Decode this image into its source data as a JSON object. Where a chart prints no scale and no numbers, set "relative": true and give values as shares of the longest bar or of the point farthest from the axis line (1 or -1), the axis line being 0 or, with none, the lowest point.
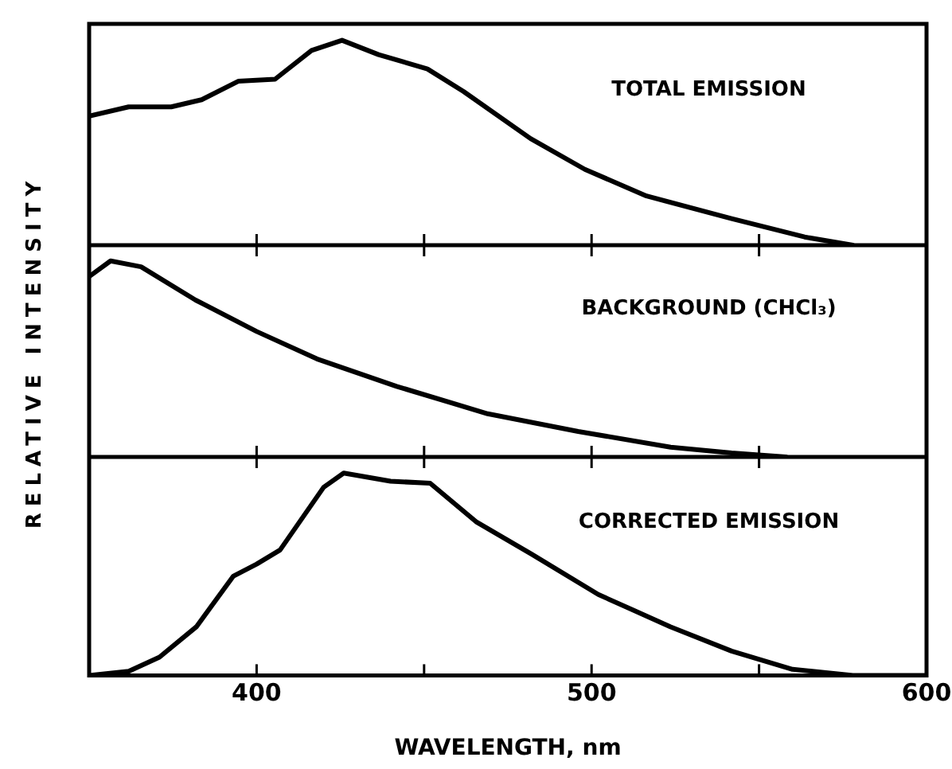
{
  "chart_data": [
    {
      "type": "line",
      "relative": true,
      "marker": "none",
      "line_style": "solid",
      "tick_labels": false,
      "xlim": [
        350,
        600
      ],
      "xticks": [
        {
          "value": 400,
          "label": null
        },
        {
          "value": 450,
          "label": null
        },
        {
          "value": 500,
          "label": null
        },
        {
          "value": 550,
          "label": null
        }
      ],
      "annotations": [
        "TOTAL EMISSION"
      ],
      "series": [
        {
          "color": "#000000",
          "x": [
            350,
            361.8,
            374.5,
            383.6,
            394.5,
            405.5,
            416.4,
            425.5,
            436.4,
            451,
            461.8,
            481.8,
            498,
            516.4,
            541.8,
            563.6,
            578
          ],
          "values": [
            0.63,
            0.675,
            0.675,
            0.71,
            0.8,
            0.81,
            0.95,
            1,
            0.93,
            0.86,
            0.75,
            0.52,
            0.37,
            0.24,
            0.13,
            0.04,
            0
          ]
        }
      ]
    },
    {
      "type": "line",
      "relative": true,
      "marker": "none",
      "line_style": "solid",
      "tick_labels": false,
      "xlim": [
        350,
        600
      ],
      "xticks": [
        {
          "value": 400,
          "label": null
        },
        {
          "value": 450,
          "label": null
        },
        {
          "value": 500,
          "label": null
        },
        {
          "value": 550,
          "label": null
        }
      ],
      "ylabel": "RELATIVE INTENSITY",
      "annotations": [
        "BACKGROUND (CHCl₃)"
      ],
      "series": [
        {
          "color": "#000000",
          "x": [
            350,
            356.4,
            365.5,
            381.8,
            400,
            418,
            441.8,
            469,
            496,
            523.6,
            541.8,
            558
          ],
          "values": [
            0.92,
            1,
            0.97,
            0.8,
            0.64,
            0.5,
            0.36,
            0.22,
            0.13,
            0.05,
            0.02,
            0
          ]
        }
      ]
    },
    {
      "type": "line",
      "relative": true,
      "marker": "none",
      "line_style": "solid",
      "tick_labels": "x",
      "xlim": [
        350,
        600
      ],
      "xticks": [
        {
          "value": 400,
          "label": "400"
        },
        {
          "value": 450,
          "label": null
        },
        500,
        {
          "value": 550,
          "label": null
        },
        600
      ],
      "xlabel": "WAVELENGTH, nm",
      "annotations": [
        "CORRECTED EMISSION"
      ],
      "series": [
        {
          "color": "#000000",
          "x": [
            350,
            361.8,
            371,
            382,
            393,
            400,
            407,
            420,
            426,
            440,
            451.8,
            465.5,
            482,
            502,
            523.6,
            541.8,
            560,
            578,
            600
          ],
          "values": [
            0,
            0.02,
            0.09,
            0.24,
            0.49,
            0.55,
            0.62,
            0.93,
            1,
            0.96,
            0.95,
            0.76,
            0.6,
            0.4,
            0.24,
            0.12,
            0.03,
            0,
            0
          ]
        }
      ]
    }
  ]
}
